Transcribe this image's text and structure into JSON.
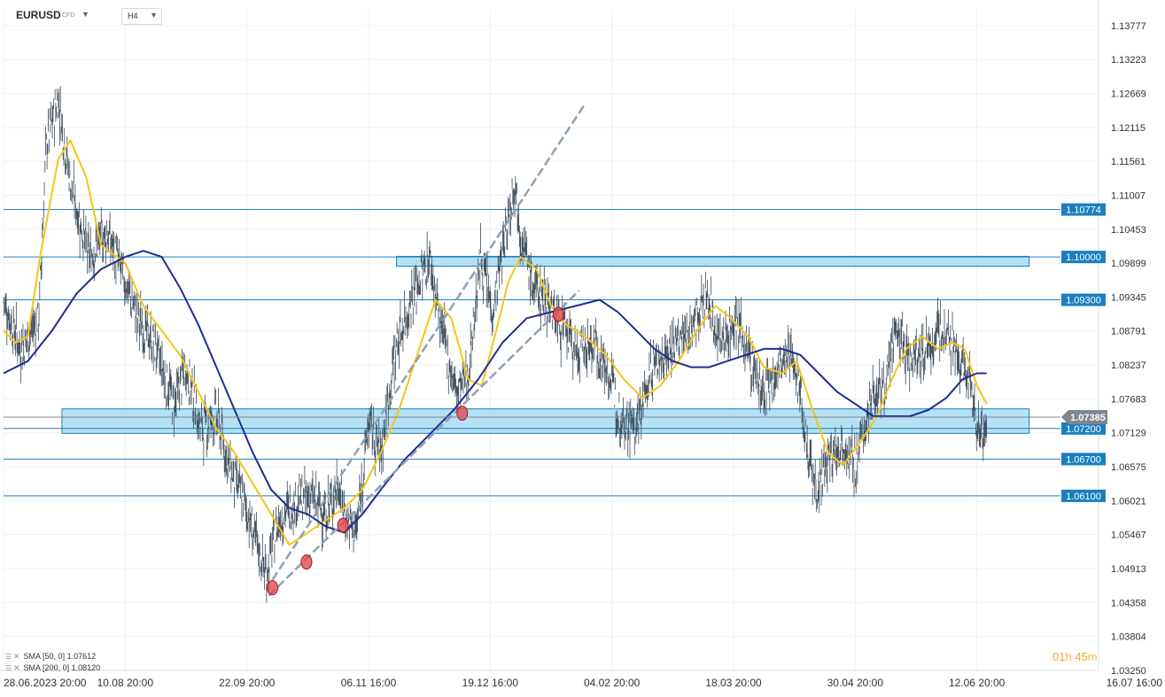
{
  "symbol": {
    "name": "EURUSD",
    "type": "CFD"
  },
  "timeframe": {
    "value": "H4"
  },
  "legend": {
    "sma50": {
      "label": "SMA",
      "params": "[50, 0]",
      "value": "1.07612"
    },
    "sma200": {
      "label": "SMA",
      "params": "[200, 0]",
      "value": "1.08120"
    }
  },
  "countdown": {
    "h": "01",
    "h_unit": "h",
    "m": "45",
    "m_unit": "m"
  },
  "colors": {
    "candle": "#3b4a58",
    "sma50": "#f5c518",
    "sma200": "#1f2d8f",
    "level": "#1a7fc0",
    "zone_fill": "#8fd1f0",
    "zone_border": "#1a7fc0",
    "price_tag": "#7f8690",
    "marker": "#e5484d",
    "trendline": "#8ea0b4"
  },
  "chart_data": {
    "type": "candlestick",
    "instrument": "EURUSD",
    "interval": "H4",
    "ylim": [
      1.0325,
      1.1405
    ],
    "y_ticks": [
      "1.13777",
      "1.13223",
      "1.12669",
      "1.12115",
      "1.11561",
      "1.11007",
      "1.10453",
      "1.09899",
      "1.09345",
      "1.08791",
      "1.08237",
      "1.07683",
      "1.07129",
      "1.06575",
      "1.06021",
      "1.05467",
      "1.04913",
      "1.04358",
      "1.03804",
      "1.03250"
    ],
    "x_ticks": [
      "28.06.2023 20:00",
      "10.08 20:00",
      "22.09 20:00",
      "06.11 16:00",
      "19.12 16:00",
      "04.02 20:00",
      "18.03 20:00",
      "30.04 20:00",
      "12.06 20:00",
      "16.07 16:00"
    ],
    "x_range": [
      0,
      9
    ],
    "current_price": "1.07385",
    "horizontal_levels": [
      "1.10774",
      "1.10000",
      "1.09300",
      "1.07200",
      "1.06700",
      "1.06100"
    ],
    "zones": [
      {
        "from": 0.48,
        "to": 8.43,
        "low": 1.0712,
        "high": 1.0752
      },
      {
        "from": 3.23,
        "to": 8.43,
        "low": 1.0985,
        "high": 1.1001
      }
    ],
    "trendlines": [
      {
        "dashed": true,
        "points": [
          [
            2.21,
            1.0473
          ],
          [
            4.78,
            1.125
          ]
        ]
      },
      {
        "dashed": true,
        "points": [
          [
            2.18,
            1.0447
          ],
          [
            4.73,
            1.0945
          ]
        ]
      }
    ],
    "markers": [
      [
        2.21,
        1.046
      ],
      [
        2.49,
        1.0502
      ],
      [
        2.79,
        1.0562
      ],
      [
        3.77,
        1.0745
      ],
      [
        4.56,
        1.0906
      ]
    ],
    "price_path": [
      [
        0.0,
        1.093
      ],
      [
        0.14,
        1.085
      ],
      [
        0.29,
        1.09
      ],
      [
        0.35,
        1.118
      ],
      [
        0.45,
        1.126
      ],
      [
        0.55,
        1.112
      ],
      [
        0.7,
        1.1
      ],
      [
        0.85,
        1.104
      ],
      [
        1.0,
        1.096
      ],
      [
        1.1,
        1.09
      ],
      [
        1.25,
        1.085
      ],
      [
        1.4,
        1.076
      ],
      [
        1.5,
        1.082
      ],
      [
        1.62,
        1.072
      ],
      [
        1.75,
        1.074
      ],
      [
        1.85,
        1.066
      ],
      [
        1.98,
        1.06
      ],
      [
        2.08,
        1.053
      ],
      [
        2.16,
        1.048
      ],
      [
        2.26,
        1.057
      ],
      [
        2.4,
        1.06
      ],
      [
        2.52,
        1.061
      ],
      [
        2.65,
        1.058
      ],
      [
        2.75,
        1.063
      ],
      [
        2.82,
        1.057
      ],
      [
        2.9,
        1.055
      ],
      [
        3.0,
        1.073
      ],
      [
        3.1,
        1.068
      ],
      [
        3.22,
        1.085
      ],
      [
        3.35,
        1.093
      ],
      [
        3.5,
        1.1
      ],
      [
        3.6,
        1.088
      ],
      [
        3.72,
        1.078
      ],
      [
        3.82,
        1.081
      ],
      [
        3.92,
        1.1
      ],
      [
        4.02,
        1.091
      ],
      [
        4.12,
        1.103
      ],
      [
        4.2,
        1.113
      ],
      [
        4.25,
        1.104
      ],
      [
        4.35,
        1.095
      ],
      [
        4.48,
        1.093
      ],
      [
        4.6,
        1.088
      ],
      [
        4.72,
        1.084
      ],
      [
        4.85,
        1.086
      ],
      [
        4.97,
        1.081
      ],
      [
        5.07,
        1.074
      ],
      [
        5.2,
        1.072
      ],
      [
        5.33,
        1.082
      ],
      [
        5.48,
        1.085
      ],
      [
        5.6,
        1.087
      ],
      [
        5.78,
        1.093
      ],
      [
        5.9,
        1.086
      ],
      [
        6.02,
        1.09
      ],
      [
        6.12,
        1.084
      ],
      [
        6.25,
        1.077
      ],
      [
        6.38,
        1.082
      ],
      [
        6.5,
        1.084
      ],
      [
        6.6,
        1.07
      ],
      [
        6.68,
        1.062
      ],
      [
        6.8,
        1.067
      ],
      [
        6.9,
        1.07
      ],
      [
        7.0,
        1.066
      ],
      [
        7.12,
        1.076
      ],
      [
        7.25,
        1.08
      ],
      [
        7.35,
        1.088
      ],
      [
        7.45,
        1.083
      ],
      [
        7.6,
        1.085
      ],
      [
        7.75,
        1.089
      ],
      [
        7.85,
        1.082
      ],
      [
        7.95,
        1.079
      ],
      [
        8.03,
        1.07
      ],
      [
        8.08,
        1.073
      ]
    ],
    "series": [
      {
        "name": "SMA [50, 0]",
        "last": "1.07612",
        "points": [
          [
            0.0,
            1.088
          ],
          [
            0.1,
            1.086
          ],
          [
            0.2,
            1.087
          ],
          [
            0.3,
            1.1
          ],
          [
            0.45,
            1.116
          ],
          [
            0.55,
            1.119
          ],
          [
            0.68,
            1.113
          ],
          [
            0.8,
            1.102
          ],
          [
            1.0,
            1.099
          ],
          [
            1.15,
            1.092
          ],
          [
            1.3,
            1.088
          ],
          [
            1.45,
            1.084
          ],
          [
            1.6,
            1.078
          ],
          [
            1.75,
            1.072
          ],
          [
            1.9,
            1.068
          ],
          [
            2.05,
            1.063
          ],
          [
            2.2,
            1.058
          ],
          [
            2.35,
            1.053
          ],
          [
            2.5,
            1.055
          ],
          [
            2.65,
            1.057
          ],
          [
            2.8,
            1.059
          ],
          [
            2.95,
            1.062
          ],
          [
            3.1,
            1.068
          ],
          [
            3.25,
            1.075
          ],
          [
            3.4,
            1.084
          ],
          [
            3.55,
            1.093
          ],
          [
            3.68,
            1.09
          ],
          [
            3.82,
            1.08
          ],
          [
            3.93,
            1.079
          ],
          [
            4.05,
            1.088
          ],
          [
            4.15,
            1.096
          ],
          [
            4.25,
            1.1
          ],
          [
            4.38,
            1.098
          ],
          [
            4.5,
            1.092
          ],
          [
            4.62,
            1.089
          ],
          [
            4.78,
            1.087
          ],
          [
            4.95,
            1.084
          ],
          [
            5.1,
            1.08
          ],
          [
            5.25,
            1.077
          ],
          [
            5.4,
            1.079
          ],
          [
            5.55,
            1.083
          ],
          [
            5.7,
            1.088
          ],
          [
            5.85,
            1.092
          ],
          [
            5.98,
            1.09
          ],
          [
            6.12,
            1.087
          ],
          [
            6.25,
            1.082
          ],
          [
            6.4,
            1.081
          ],
          [
            6.52,
            1.083
          ],
          [
            6.65,
            1.075
          ],
          [
            6.78,
            1.068
          ],
          [
            6.9,
            1.066
          ],
          [
            7.05,
            1.07
          ],
          [
            7.18,
            1.074
          ],
          [
            7.3,
            1.08
          ],
          [
            7.42,
            1.085
          ],
          [
            7.55,
            1.087
          ],
          [
            7.68,
            1.085
          ],
          [
            7.8,
            1.086
          ],
          [
            7.9,
            1.085
          ],
          [
            8.0,
            1.079
          ],
          [
            8.08,
            1.076
          ]
        ]
      },
      {
        "name": "SMA [200, 0]",
        "last": "1.08120",
        "points": [
          [
            0.0,
            1.081
          ],
          [
            0.2,
            1.083
          ],
          [
            0.4,
            1.088
          ],
          [
            0.6,
            1.094
          ],
          [
            0.8,
            1.098
          ],
          [
            1.0,
            1.1
          ],
          [
            1.15,
            1.101
          ],
          [
            1.3,
            1.1
          ],
          [
            1.45,
            1.095
          ],
          [
            1.6,
            1.089
          ],
          [
            1.75,
            1.082
          ],
          [
            1.9,
            1.075
          ],
          [
            2.05,
            1.068
          ],
          [
            2.2,
            1.062
          ],
          [
            2.35,
            1.059
          ],
          [
            2.5,
            1.058
          ],
          [
            2.65,
            1.056
          ],
          [
            2.8,
            1.055
          ],
          [
            2.95,
            1.058
          ],
          [
            3.1,
            1.062
          ],
          [
            3.3,
            1.067
          ],
          [
            3.5,
            1.071
          ],
          [
            3.7,
            1.075
          ],
          [
            3.9,
            1.08
          ],
          [
            4.1,
            1.086
          ],
          [
            4.3,
            1.09
          ],
          [
            4.5,
            1.091
          ],
          [
            4.7,
            1.092
          ],
          [
            4.9,
            1.093
          ],
          [
            5.05,
            1.091
          ],
          [
            5.2,
            1.088
          ],
          [
            5.35,
            1.085
          ],
          [
            5.5,
            1.083
          ],
          [
            5.65,
            1.082
          ],
          [
            5.8,
            1.082
          ],
          [
            5.95,
            1.083
          ],
          [
            6.1,
            1.084
          ],
          [
            6.25,
            1.085
          ],
          [
            6.4,
            1.085
          ],
          [
            6.55,
            1.084
          ],
          [
            6.7,
            1.081
          ],
          [
            6.85,
            1.078
          ],
          [
            7.0,
            1.076
          ],
          [
            7.15,
            1.074
          ],
          [
            7.3,
            1.074
          ],
          [
            7.45,
            1.074
          ],
          [
            7.6,
            1.075
          ],
          [
            7.75,
            1.077
          ],
          [
            7.88,
            1.08
          ],
          [
            8.0,
            1.081
          ],
          [
            8.08,
            1.081
          ]
        ]
      }
    ]
  }
}
